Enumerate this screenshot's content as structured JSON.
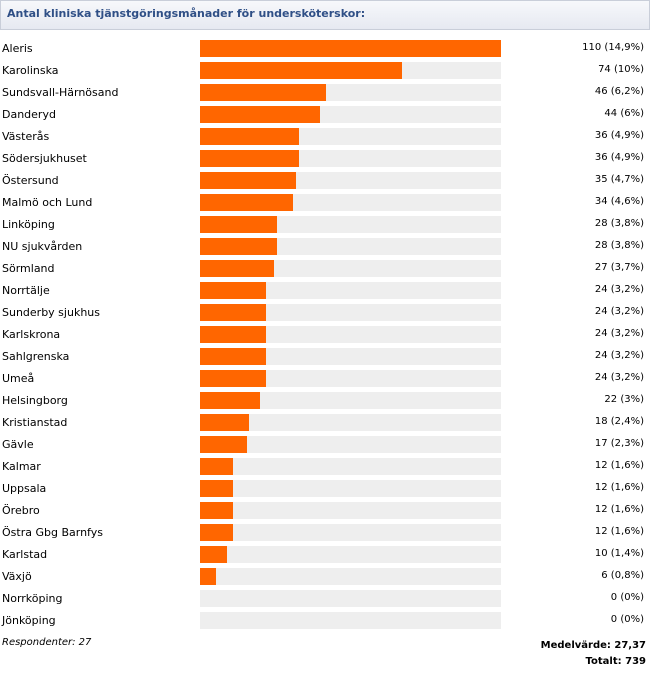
{
  "title": "Antal kliniska tjänstgöringsmånader för undersköterskor:",
  "footer": {
    "respondents": "Respondenter: 27",
    "mean": "Medelvärde: 27,37",
    "total": "Totalt: 739"
  },
  "colors": {
    "bar": "#ff6600",
    "track": "#eeeeee",
    "title": "#2f4f86"
  },
  "chart_data": {
    "type": "bar",
    "orientation": "horizontal",
    "title": "Antal kliniska tjänstgöringsmånader för undersköterskor:",
    "xlim": [
      0,
      110
    ],
    "categories": [
      "Aleris",
      "Karolinska",
      "Sundsvall-Härnösand",
      "Danderyd",
      "Västerås",
      "Södersjukhuset",
      "Östersund",
      "Malmö och Lund",
      "Linköping",
      "NU sjukvården",
      "Sörmland",
      "Norrtälje",
      "Sunderby sjukhus",
      "Karlskrona",
      "Sahlgrenska",
      "Umeå",
      "Helsingborg",
      "Kristianstad",
      "Gävle",
      "Kalmar",
      "Uppsala",
      "Örebro",
      "Östra Gbg Barnfys",
      "Karlstad",
      "Växjö",
      "Norrköping",
      "Jönköping"
    ],
    "values": [
      110,
      74,
      46,
      44,
      36,
      36,
      35,
      34,
      28,
      28,
      27,
      24,
      24,
      24,
      24,
      24,
      22,
      18,
      17,
      12,
      12,
      12,
      12,
      10,
      6,
      0,
      0
    ],
    "value_labels": [
      "110 (14,9%)",
      "74 (10%)",
      "46 (6,2%)",
      "44 (6%)",
      "36 (4,9%)",
      "36 (4,9%)",
      "35 (4,7%)",
      "34 (4,6%)",
      "28 (3,8%)",
      "28 (3,8%)",
      "27 (3,7%)",
      "24 (3,2%)",
      "24 (3,2%)",
      "24 (3,2%)",
      "24 (3,2%)",
      "24 (3,2%)",
      "22 (3%)",
      "18 (2,4%)",
      "17 (2,3%)",
      "12 (1,6%)",
      "12 (1,6%)",
      "12 (1,6%)",
      "12 (1,6%)",
      "10 (1,4%)",
      "6 (0,8%)",
      "0 (0%)",
      "0 (0%)"
    ]
  }
}
